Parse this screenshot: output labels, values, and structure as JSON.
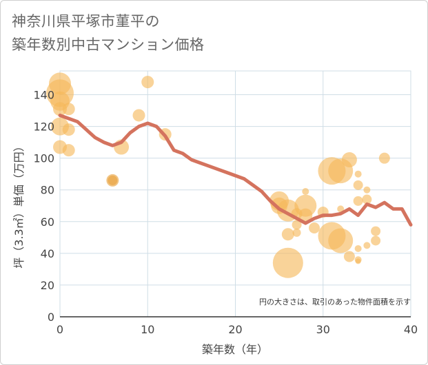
{
  "title_line1": "神奈川県平塚市菫平の",
  "title_line2": "築年数別中古マンション価格",
  "chart_data": {
    "type": "scatter",
    "xlabel": "築年数（年）",
    "ylabel": "坪（3.3㎡）単価（万円）",
    "xlim": [
      0,
      40
    ],
    "ylim": [
      0,
      155
    ],
    "xticks": [
      0,
      10,
      20,
      30,
      40
    ],
    "yticks": [
      0,
      20,
      40,
      60,
      80,
      100,
      120,
      140
    ],
    "note": "円の大きさは、取引のあった物件面積を示す",
    "colors": {
      "bubble": "#f5b85a",
      "bubble_dark": "#e9a23b",
      "line": "#d4735e",
      "grid": "#cfdde6"
    },
    "bubbles": [
      {
        "x": 0,
        "y": 147,
        "s": 16
      },
      {
        "x": 0,
        "y": 141,
        "s": 20
      },
      {
        "x": 0,
        "y": 136,
        "s": 14
      },
      {
        "x": 0,
        "y": 131,
        "s": 10
      },
      {
        "x": 0,
        "y": 120,
        "s": 13
      },
      {
        "x": 0,
        "y": 107,
        "s": 10
      },
      {
        "x": 1,
        "y": 131,
        "s": 9
      },
      {
        "x": 1,
        "y": 118,
        "s": 9
      },
      {
        "x": 1,
        "y": 105,
        "s": 9
      },
      {
        "x": 6,
        "y": 86,
        "s": 9
      },
      {
        "x": 6,
        "y": 86,
        "s": 7
      },
      {
        "x": 7,
        "y": 107,
        "s": 11
      },
      {
        "x": 9,
        "y": 127,
        "s": 9
      },
      {
        "x": 10,
        "y": 148,
        "s": 9
      },
      {
        "x": 12,
        "y": 115,
        "s": 9
      },
      {
        "x": 25,
        "y": 73,
        "s": 14
      },
      {
        "x": 25,
        "y": 70,
        "s": 12
      },
      {
        "x": 26,
        "y": 67,
        "s": 16
      },
      {
        "x": 26,
        "y": 52,
        "s": 9
      },
      {
        "x": 26,
        "y": 34,
        "s": 22
      },
      {
        "x": 27,
        "y": 65,
        "s": 8
      },
      {
        "x": 27,
        "y": 58,
        "s": 7
      },
      {
        "x": 27,
        "y": 53,
        "s": 6
      },
      {
        "x": 28,
        "y": 79,
        "s": 5
      },
      {
        "x": 28,
        "y": 70,
        "s": 16
      },
      {
        "x": 28,
        "y": 64,
        "s": 10
      },
      {
        "x": 29,
        "y": 56,
        "s": 8
      },
      {
        "x": 30,
        "y": 66,
        "s": 8
      },
      {
        "x": 31,
        "y": 92,
        "s": 20
      },
      {
        "x": 31,
        "y": 51,
        "s": 20
      },
      {
        "x": 32,
        "y": 92,
        "s": 18
      },
      {
        "x": 32,
        "y": 48,
        "s": 18
      },
      {
        "x": 32,
        "y": 68,
        "s": 5
      },
      {
        "x": 33,
        "y": 99,
        "s": 11
      },
      {
        "x": 33,
        "y": 38,
        "s": 8
      },
      {
        "x": 34,
        "y": 90,
        "s": 5
      },
      {
        "x": 34,
        "y": 83,
        "s": 7
      },
      {
        "x": 34,
        "y": 73,
        "s": 7
      },
      {
        "x": 34,
        "y": 43,
        "s": 5
      },
      {
        "x": 34,
        "y": 36,
        "s": 5
      },
      {
        "x": 34,
        "y": 35,
        "s": 4
      },
      {
        "x": 35,
        "y": 80,
        "s": 5
      },
      {
        "x": 35,
        "y": 74,
        "s": 7
      },
      {
        "x": 35,
        "y": 45,
        "s": 5
      },
      {
        "x": 36,
        "y": 54,
        "s": 7
      },
      {
        "x": 36,
        "y": 48,
        "s": 7
      },
      {
        "x": 37,
        "y": 100,
        "s": 8
      }
    ],
    "line": [
      [
        0,
        127
      ],
      [
        1,
        125
      ],
      [
        2,
        123
      ],
      [
        3,
        118
      ],
      [
        4,
        113
      ],
      [
        5,
        110
      ],
      [
        6,
        108
      ],
      [
        7,
        110
      ],
      [
        8,
        116
      ],
      [
        9,
        120
      ],
      [
        10,
        122
      ],
      [
        11,
        120
      ],
      [
        12,
        114
      ],
      [
        13,
        105
      ],
      [
        14,
        103
      ],
      [
        15,
        99
      ],
      [
        16,
        97
      ],
      [
        17,
        95
      ],
      [
        18,
        93
      ],
      [
        19,
        91
      ],
      [
        20,
        89
      ],
      [
        21,
        87
      ],
      [
        22,
        83
      ],
      [
        23,
        79
      ],
      [
        24,
        73
      ],
      [
        25,
        68
      ],
      [
        26,
        65
      ],
      [
        27,
        62
      ],
      [
        28,
        59
      ],
      [
        29,
        62
      ],
      [
        30,
        64
      ],
      [
        31,
        64
      ],
      [
        32,
        65
      ],
      [
        33,
        68
      ],
      [
        34,
        64
      ],
      [
        35,
        71
      ],
      [
        36,
        69
      ],
      [
        37,
        72
      ],
      [
        38,
        68
      ],
      [
        39,
        68
      ],
      [
        40,
        58
      ]
    ]
  }
}
